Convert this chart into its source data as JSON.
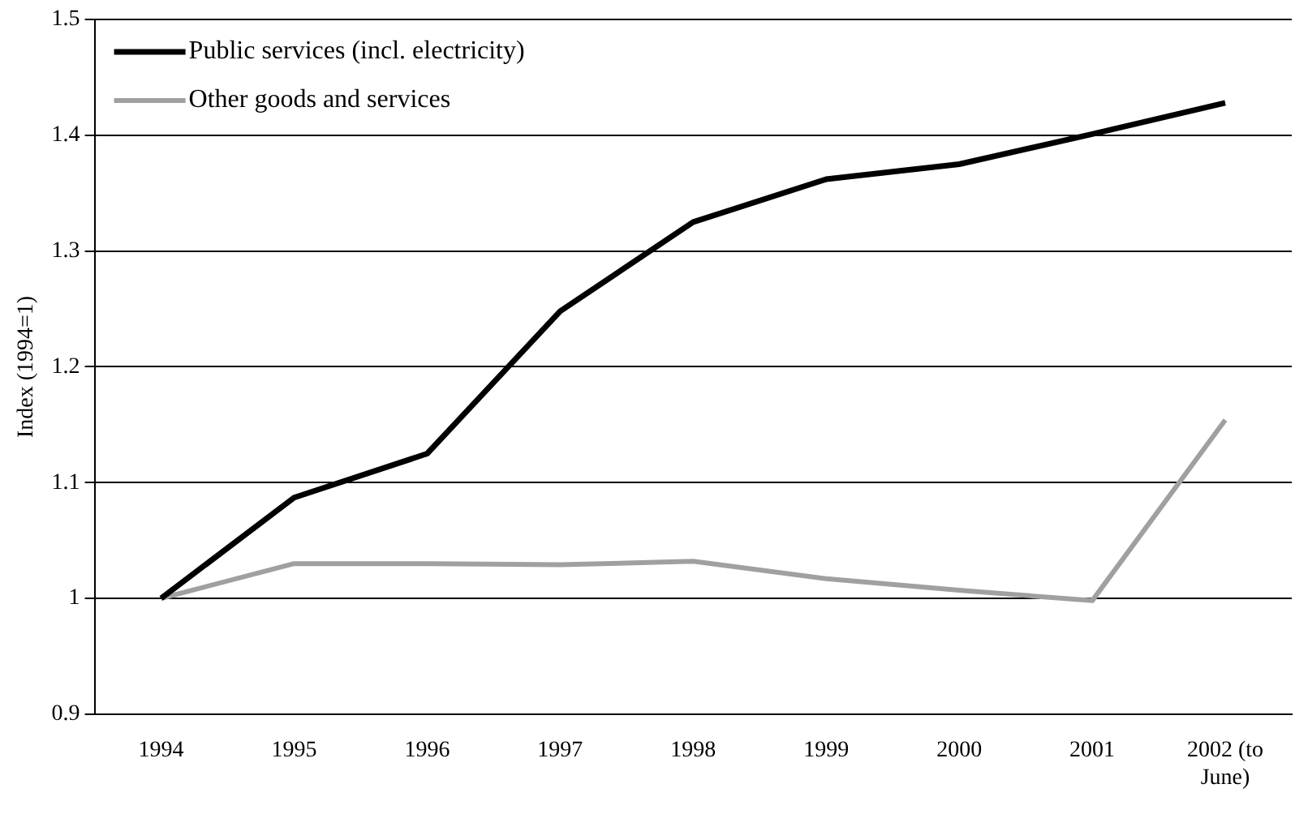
{
  "chart_data": {
    "type": "line",
    "ylabel": "Index (1994=1)",
    "categories": [
      "1994",
      "1995",
      "1996",
      "1997",
      "1998",
      "1999",
      "2000",
      "2001",
      "2002 (to June)"
    ],
    "series": [
      {
        "name": "Public services (incl. electricity)",
        "color": "#000000",
        "values": [
          1,
          1.087,
          1.125,
          1.248,
          1.325,
          1.362,
          1.375,
          1.401,
          1.428
        ]
      },
      {
        "name": "Other goods and services",
        "color": "#a0a0a0",
        "values": [
          1,
          1.03,
          1.03,
          1.029,
          1.032,
          1.017,
          1.007,
          0.998,
          1.154
        ]
      }
    ],
    "ylim": [
      0.9,
      1.5
    ],
    "yticks": [
      0.9,
      1,
      1.1,
      1.2,
      1.3,
      1.4,
      1.5
    ],
    "grid": "y",
    "legend": "top left",
    "marker": "none",
    "line_style": "solid"
  }
}
